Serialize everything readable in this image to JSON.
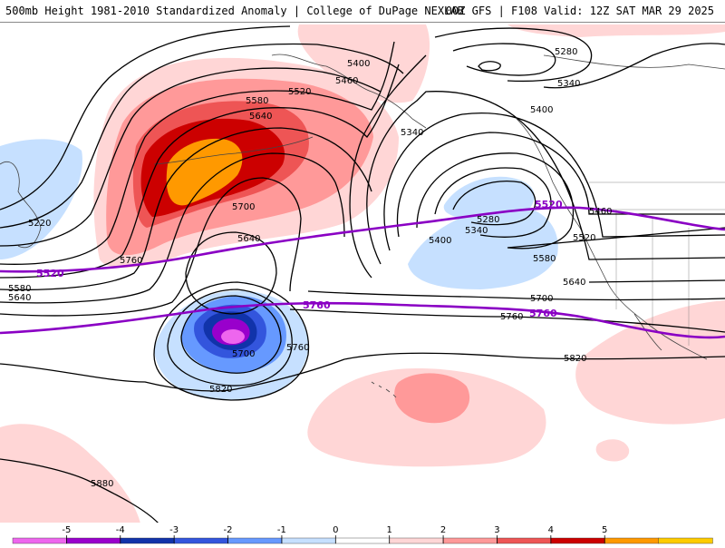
{
  "header": {
    "left_title": "500mb Height 1981-2010 Standardized Anomaly | College of DuPage NEXLAB",
    "right_title": "00Z GFS | F108 Valid: 12Z SAT MAR 29 2025"
  },
  "contours": {
    "black_labels": {
      "l5280a": "5280",
      "l5340a": "5340",
      "l5400a": "5400",
      "l5400b": "5400",
      "l5460a": "5460",
      "l5520a": "5520",
      "l5580a": "5580",
      "l5640a": "5640",
      "l5340b": "5340",
      "l5700a": "5700",
      "l5640b": "5640",
      "l5760a": "5760",
      "l5220a": "5220",
      "l5580b": "5580",
      "l5640c": "5640",
      "l5280b": "5280",
      "l5340c": "5340",
      "l5400c": "5400",
      "l5460b": "5460",
      "l5520b": "5520",
      "l5580c": "5580",
      "l5640d": "5640",
      "l5700b": "5700",
      "l5760b": "5760",
      "l5700c": "5700",
      "l5760c": "5760",
      "l5820a": "5820",
      "l5820b": "5820",
      "l5880a": "5880"
    },
    "purple_labels": {
      "p5520a": "5520",
      "p5520b": "5520",
      "p5760a": "5760",
      "p5760b": "5760"
    }
  },
  "legend": {
    "ticks": [
      "-5",
      "-4",
      "-3",
      "-2",
      "-1",
      "0",
      "1",
      "2",
      "3",
      "4",
      "5"
    ],
    "colors": [
      "#ee66ee",
      "#9900cc",
      "#1133aa",
      "#3355dd",
      "#6699ff",
      "#c6e0ff",
      "#ffffff",
      "#ffd6d6",
      "#ff9999",
      "#ee5555",
      "#cc0000",
      "#ff9900",
      "#ffcc00"
    ]
  },
  "colors": {
    "contour": "#000000",
    "purple_line": "#8a00c4",
    "coast": "#444444"
  }
}
